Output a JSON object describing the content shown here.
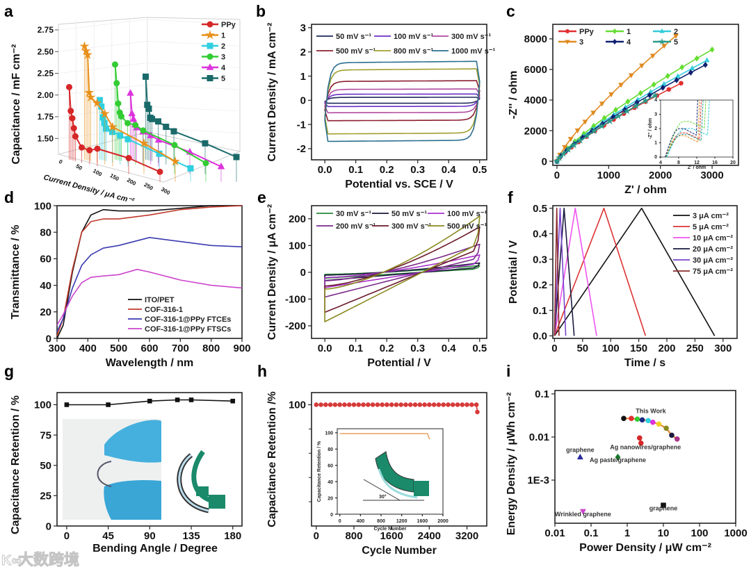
{
  "figure": {
    "watermark": "大数跨境",
    "watermark_logo": "K∞"
  },
  "chart_data": [
    {
      "panel": "a",
      "type": "line-3d",
      "xlabel": "Current Density / μA cm⁻²",
      "ylabel": "Capacitance / mF cm⁻²",
      "ylim": [
        1.33,
        2.8
      ],
      "xlim": [
        0,
        300
      ],
      "yticks": [
        1.5,
        1.75,
        2.0,
        2.25,
        2.5,
        2.75
      ],
      "ytick_labels": [
        "1.50",
        "1.75",
        "2.00",
        "2.25",
        "2.50",
        "2.75"
      ],
      "xticks": [
        0,
        50,
        100,
        150,
        200,
        250,
        300
      ],
      "xtick_labels": [
        "0",
        "50",
        "100",
        "150",
        "200",
        "250",
        "300"
      ],
      "x": [
        10,
        15,
        20,
        25,
        30,
        50,
        75,
        100,
        200,
        300
      ],
      "series": [
        {
          "name": "PPy",
          "color": "#d62728",
          "marker": "circle",
          "y": [
            2.1,
            1.83,
            1.75,
            1.64,
            1.55,
            1.44,
            1.43,
            1.47,
            1.45,
            1.38
          ]
        },
        {
          "name": "1",
          "color": "#e8901a",
          "marker": "star",
          "y": [
            2.57,
            2.52,
            2.48,
            2.05,
            2.0,
            1.95,
            1.85,
            1.72,
            1.62,
            1.5
          ]
        },
        {
          "name": "2",
          "color": "#2fd0e0",
          "marker": "square",
          "y": [
            1.95,
            1.88,
            1.76,
            1.7,
            1.64,
            1.62,
            1.6,
            1.58,
            1.5,
            1.42
          ]
        },
        {
          "name": "3",
          "color": "#33cc33",
          "marker": "circle",
          "y": [
            2.36,
            2.15,
            1.92,
            1.82,
            1.78,
            1.72,
            1.72,
            1.68,
            1.6,
            1.48
          ]
        },
        {
          "name": "4",
          "color": "#dd33dd",
          "marker": "triangle",
          "y": [
            2.03,
            1.8,
            1.74,
            1.68,
            1.65,
            1.62,
            1.6,
            1.57,
            1.52,
            1.44
          ]
        },
        {
          "name": "5",
          "color": "#1a6a6a",
          "marker": "square",
          "y": [
            2.22,
            1.9,
            1.86,
            1.76,
            1.75,
            1.74,
            1.7,
            1.67,
            1.62,
            1.55
          ]
        }
      ]
    },
    {
      "panel": "b",
      "type": "line",
      "generator": "cv_rect",
      "xlabel": "Potential vs. SCE / V",
      "ylabel": "Current Density / mA cm⁻²",
      "xlim": [
        -0.043,
        0.523
      ],
      "ylim": [
        -2.46,
        3.14
      ],
      "xticks": [
        0,
        0.1,
        0.2,
        0.3,
        0.4,
        0.5
      ],
      "xtick_labels": [
        "0.0",
        "0.1",
        "0.2",
        "0.3",
        "0.4",
        "0.5"
      ],
      "yticks": [
        -2,
        -1,
        0,
        1,
        2,
        3
      ],
      "ytick_labels": [
        "-2",
        "-1",
        "0",
        "1",
        "2",
        "3"
      ],
      "series": [
        {
          "name": "50 mV s⁻¹",
          "color": "#1f2a5a",
          "upper": 0.12,
          "lower": -0.12
        },
        {
          "name": "100 mV s⁻¹",
          "color": "#6a2fc8",
          "upper": 0.25,
          "lower": -0.25
        },
        {
          "name": "300 mV s⁻¹",
          "color": "#b04aa0",
          "upper": 0.45,
          "lower": -0.5
        },
        {
          "name": "500 mV s⁻¹",
          "color": "#8b1f2f",
          "upper": 0.78,
          "lower": -0.82
        },
        {
          "name": "800 mV s⁻¹",
          "color": "#a0a030",
          "upper": 1.25,
          "lower": -1.35
        },
        {
          "name": "1000 mV s⁻¹",
          "color": "#2a6f8f",
          "upper": 1.55,
          "lower": -1.65
        }
      ]
    },
    {
      "panel": "c",
      "type": "line",
      "generator": "nyquist",
      "xlabel": "Z' / ohm",
      "ylabel": "-Z'' / ohm",
      "xlim": [
        -80,
        3510
      ],
      "ylim": [
        -270,
        8950
      ],
      "xticks": [
        0,
        1000,
        2000,
        3000
      ],
      "xtick_labels": [
        "0",
        "1000",
        "2000",
        "3000"
      ],
      "yticks": [
        0,
        2000,
        4000,
        6000,
        8000
      ],
      "ytick_labels": [
        "0",
        "2000",
        "4000",
        "6000",
        "8000"
      ],
      "series": [
        {
          "name": "PPy",
          "color": "#e03030",
          "marker": "circle",
          "x_end": 2400,
          "y_end": 5100
        },
        {
          "name": "1",
          "color": "#66dd33",
          "marker": "diamond",
          "x_end": 3000,
          "y_end": 7300
        },
        {
          "name": "2",
          "color": "#33ccdd",
          "marker": "triangle",
          "x_end": 2900,
          "y_end": 6600
        },
        {
          "name": "3",
          "color": "#e08a20",
          "marker": "triangle-down",
          "x_end": 2300,
          "y_end": 8200
        },
        {
          "name": "4",
          "color": "#102070",
          "marker": "diamond",
          "x_end": 2870,
          "y_end": 6300
        },
        {
          "name": "5",
          "color": "#2a9a8a",
          "marker": "star",
          "x_end": 1900,
          "y_end": 4300
        }
      ],
      "inset": {
        "xlabel": "Z' / ohm",
        "ylabel": "-Z'' / ohm",
        "xlim": [
          4,
          20
        ],
        "ylim": [
          0,
          4
        ],
        "xticks": [
          4,
          8,
          12,
          16,
          20
        ],
        "xtick_labels": [
          "4",
          "8",
          "12",
          "16",
          "20"
        ],
        "yticks": [
          0,
          1,
          2,
          3,
          4
        ],
        "ytick_labels": [
          "0",
          "1",
          "2",
          "3",
          "4"
        ]
      }
    },
    {
      "panel": "d",
      "type": "line",
      "xlabel": "Wavelength / nm",
      "ylabel": "Transmittance / %",
      "xlim": [
        300,
        900
      ],
      "ylim": [
        0,
        100
      ],
      "xticks": [
        300,
        400,
        500,
        600,
        700,
        800,
        900
      ],
      "xtick_labels": [
        "300",
        "400",
        "500",
        "600",
        "700",
        "800",
        "900"
      ],
      "yticks": [
        0,
        20,
        40,
        60,
        80,
        100
      ],
      "ytick_labels": [
        "0",
        "20",
        "40",
        "60",
        "80",
        "100"
      ],
      "series": [
        {
          "name": "ITO/PET",
          "color": "#111111",
          "x": [
            300,
            320,
            350,
            380,
            410,
            450,
            500,
            600,
            700,
            800,
            900
          ],
          "y": [
            0,
            10,
            50,
            80,
            93,
            97,
            96,
            96,
            98,
            100,
            100
          ]
        },
        {
          "name": "COF-316-1",
          "color": "#c0392b",
          "x": [
            300,
            320,
            350,
            380,
            410,
            450,
            500,
            600,
            700,
            800,
            900
          ],
          "y": [
            2,
            15,
            52,
            80,
            88,
            90,
            90,
            93,
            97,
            99,
            100
          ]
        },
        {
          "name": "COF-316-1@PPy FTCEs",
          "color": "#3a3ab0",
          "x": [
            300,
            320,
            350,
            380,
            410,
            450,
            500,
            600,
            700,
            800,
            900
          ],
          "y": [
            5,
            15,
            38,
            55,
            63,
            68,
            70,
            76,
            73,
            70,
            69
          ]
        },
        {
          "name": "COF-316-1@PPy FTSCs",
          "color": "#cc44cc",
          "x": [
            300,
            320,
            350,
            380,
            410,
            450,
            500,
            560,
            600,
            700,
            800,
            900
          ],
          "y": [
            10,
            18,
            32,
            42,
            46,
            47,
            48,
            52,
            50,
            44,
            40,
            38
          ]
        }
      ]
    },
    {
      "panel": "e",
      "type": "line",
      "generator": "cv_slant",
      "xlabel": "Potential / V",
      "ylabel": "Current Density / μA cm⁻²",
      "xlim": [
        -0.043,
        0.523
      ],
      "ylim": [
        -247,
        249
      ],
      "xticks": [
        0,
        0.1,
        0.2,
        0.3,
        0.4,
        0.5
      ],
      "xtick_labels": [
        "0.0",
        "0.1",
        "0.2",
        "0.3",
        "0.4",
        "0.5"
      ],
      "yticks": [
        -200,
        -100,
        0,
        100,
        200
      ],
      "ytick_labels": [
        "-200",
        "-100",
        "0",
        "100",
        "200"
      ],
      "series": [
        {
          "name": "30 mV s⁻¹",
          "color": "#2a8a3a",
          "imax": 25
        },
        {
          "name": "50 mV s⁻¹",
          "color": "#1a1a3a",
          "imax": 35
        },
        {
          "name": "100 mV s⁻¹",
          "color": "#aa33cc",
          "imax": 65
        },
        {
          "name": "200 mV s⁻¹",
          "color": "#7a2a8a",
          "imax": 105
        },
        {
          "name": "300 mV s⁻¹",
          "color": "#6a1a2a",
          "imax": 170
        },
        {
          "name": "500 mV s⁻¹",
          "color": "#8a8a20",
          "imax": 210
        }
      ]
    },
    {
      "panel": "f",
      "type": "line",
      "generator": "gcd",
      "xlabel": "Time / s",
      "ylabel": "Potential / V",
      "xlim": [
        -3,
        325
      ],
      "ylim": [
        -0.01,
        0.51
      ],
      "xticks": [
        0,
        50,
        100,
        150,
        200,
        250,
        300
      ],
      "xtick_labels": [
        "0",
        "50",
        "100",
        "150",
        "200",
        "250",
        "300"
      ],
      "yticks": [
        0,
        0.1,
        0.2,
        0.3,
        0.4,
        0.5
      ],
      "ytick_labels": [
        "0.0",
        "0.1",
        "0.2",
        "0.3",
        "0.4",
        "0.5"
      ],
      "series": [
        {
          "name": "3 μA cm⁻²",
          "color": "#111111",
          "peak": 155,
          "end": 285
        },
        {
          "name": "5 μA cm⁻²",
          "color": "#dd3333",
          "peak": 88,
          "end": 162
        },
        {
          "name": "10 μA cm⁻²",
          "color": "#ee55ee",
          "peak": 37,
          "end": 75
        },
        {
          "name": "20 μA cm⁻²",
          "color": "#1a1a40",
          "peak": 17,
          "end": 35
        },
        {
          "name": "30 μA cm⁻²",
          "color": "#7a44cc",
          "peak": 10,
          "end": 20
        },
        {
          "name": "75 μA cm⁻²",
          "color": "#8a2a2a",
          "peak": 4,
          "end": 8
        }
      ]
    },
    {
      "panel": "g",
      "type": "line",
      "xlabel": "Bending  Angle / Degree",
      "ylabel": "Capacitance Retention / %",
      "xlim": [
        -10.5,
        190
      ],
      "ylim": [
        0,
        110
      ],
      "xticks": [
        0,
        45,
        90,
        135,
        180
      ],
      "xtick_labels": [
        "0",
        "45",
        "90",
        "135",
        "180"
      ],
      "yticks": [
        0,
        25,
        50,
        75,
        100
      ],
      "ytick_labels": [
        "0",
        "25",
        "50",
        "75",
        "100"
      ],
      "series": [
        {
          "name": "retention",
          "color": "#111111",
          "marker": "square",
          "x": [
            0,
            45,
            90,
            120,
            135,
            180
          ],
          "y": [
            100,
            100,
            103,
            104,
            104,
            103
          ]
        }
      ]
    },
    {
      "panel": "h",
      "type": "line",
      "xlabel": "Cycle Number",
      "ylabel": "Capacitance Retention /%",
      "xlim": [
        -100,
        3620
      ],
      "ylim": [
        0,
        110
      ],
      "xticks": [
        0,
        800,
        1600,
        2400,
        3200
      ],
      "xtick_labels": [
        "0",
        "800",
        "1600",
        "2400",
        "3200"
      ],
      "yticks": [
        100
      ],
      "ytick_labels": [
        "100"
      ],
      "series": [
        {
          "name": "retention",
          "color": "#d63a3a",
          "marker": "circle",
          "x": [
            0,
            100,
            200,
            300,
            400,
            500,
            600,
            700,
            800,
            900,
            1000,
            1100,
            1200,
            1300,
            1400,
            1500,
            1600,
            1700,
            1800,
            1900,
            2000,
            2100,
            2200,
            2300,
            2400,
            2500,
            2600,
            2700,
            2800,
            2900,
            3000,
            3100,
            3200,
            3300,
            3400,
            3420
          ],
          "y": [
            100,
            100,
            100,
            100,
            100,
            100,
            100,
            100,
            100,
            100,
            100,
            100,
            100,
            100,
            100,
            100,
            100,
            100,
            100,
            100,
            100,
            100,
            100,
            100,
            100,
            100,
            100,
            100,
            100,
            100,
            100,
            100,
            100,
            100,
            100,
            94
          ]
        }
      ],
      "inset": {
        "xlabel": "Cycle Number",
        "ylabel": "Capacitance Retention / %",
        "xlim": [
          -50,
          2000
        ],
        "ylim": [
          0,
          105
        ],
        "xticks": [
          0,
          400,
          800,
          1200,
          1600,
          2000
        ],
        "xtick_labels": [
          "0",
          "400",
          "800",
          "1200",
          "1600",
          "2000"
        ],
        "yticks": [
          0,
          20,
          40,
          60,
          80,
          100
        ],
        "ytick_labels": [
          "0",
          "20",
          "40",
          "60",
          "80",
          "100"
        ],
        "series": [
          {
            "name": "retention",
            "color": "#e8a060",
            "x": [
              0,
              200,
              400,
              600,
              800,
              1000,
              1200,
              1400,
              1600,
              1700,
              1740
            ],
            "y": [
              99,
              99,
              99,
              99,
              99,
              99,
              99,
              99,
              99,
              99,
              92
            ]
          }
        ],
        "angle_label": "30°"
      }
    },
    {
      "panel": "i",
      "type": "scatter",
      "xscale": "log",
      "yscale": "log",
      "xlabel": "Power Density / μW cm⁻²",
      "ylabel": "Energy Density / μWh cm⁻²",
      "xlim": [
        0.01,
        1000
      ],
      "ylim": [
        0.0001,
        0.12
      ],
      "xticks": [
        0.01,
        0.1,
        1,
        10,
        100,
        1000
      ],
      "xtick_labels": [
        "0.01",
        "0.1",
        "1",
        "10",
        "100",
        "1000"
      ],
      "yticks": [
        0.001,
        0.01,
        0.1
      ],
      "ytick_labels": [
        "1E-3",
        "0.01",
        "0.1"
      ],
      "series": [
        {
          "name": "This Work",
          "color": "#e67e22",
          "marker": "circle",
          "line": true,
          "x": [
            0.8,
            1.3,
            1.9,
            2.6,
            3.8,
            5.1,
            7.5,
            12,
            17,
            24
          ],
          "y": [
            0.027,
            0.027,
            0.026,
            0.025,
            0.024,
            0.022,
            0.02,
            0.016,
            0.011,
            0.009
          ],
          "point_colors": [
            "#111111",
            "#e03030",
            "#33cc33",
            "#1a2a80",
            "#2fd0e0",
            "#dd33dd",
            "#f0d020",
            "#8a8a20",
            "#1a1a40",
            "#aa3388"
          ]
        },
        {
          "name": "Ag nanowires/graphene",
          "color": "#d62728",
          "marker": "circle",
          "line": true,
          "x": [
            2.2,
            2.4
          ],
          "y": [
            0.0095,
            0.0072
          ]
        },
        {
          "name": "graphene",
          "color": "#2a2aa0",
          "marker": "triangle",
          "x": [
            0.05
          ],
          "y": [
            0.0034
          ]
        },
        {
          "name": "Ag paste/graphene",
          "color": "#1a7a2a",
          "marker": "diamond",
          "x": [
            0.55
          ],
          "y": [
            0.0034
          ]
        },
        {
          "name": "Wrinkled graphene",
          "color": "#cc44cc",
          "marker": "triangle-down",
          "x": [
            0.06
          ],
          "y": [
            0.00019
          ]
        },
        {
          "name": "graphene",
          "color": "#111111",
          "marker": "square",
          "x": [
            10
          ],
          "y": [
            0.00026
          ]
        }
      ],
      "annotations": [
        {
          "text": "This Work",
          "x": 4.5,
          "y": 0.036
        },
        {
          "text": "Ag nanowires/graphene",
          "x": 3.2,
          "y": 0.0052
        },
        {
          "text": "graphene",
          "x": 0.05,
          "y": 0.0045
        },
        {
          "text": "Ag paste/graphene",
          "x": 0.55,
          "y": 0.0026
        },
        {
          "text": "Wrinkled graphene",
          "x": 0.06,
          "y": 0.000145
        },
        {
          "text": "graphene",
          "x": 10,
          "y": 0.0002
        }
      ]
    }
  ]
}
